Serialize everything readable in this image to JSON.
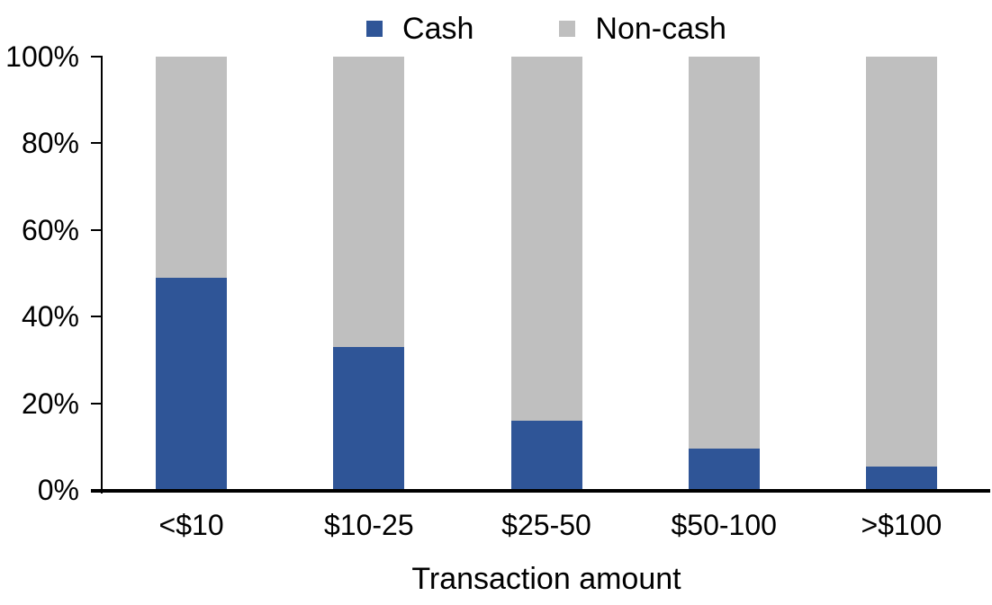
{
  "chart_data": {
    "type": "bar",
    "subtype": "stacked-100",
    "title": "",
    "categories": [
      "<$10",
      "$10-25",
      "$25-50",
      "$50-100",
      ">$100"
    ],
    "series": [
      {
        "name": "Cash",
        "color": "#2F5597",
        "values": [
          49,
          33,
          16,
          9.5,
          5.5
        ]
      },
      {
        "name": "Non-cash",
        "color": "#BFBFBF",
        "values": [
          51,
          67,
          84,
          90.5,
          94.5
        ]
      }
    ],
    "xlabel": "Transaction amount",
    "ylabel": "",
    "ylim": [
      0,
      100
    ],
    "yticks": [
      {
        "value": 0,
        "label": "0%"
      },
      {
        "value": 20,
        "label": "20%"
      },
      {
        "value": 40,
        "label": "40%"
      },
      {
        "value": 60,
        "label": "60%"
      },
      {
        "value": 80,
        "label": "80%"
      },
      {
        "value": 100,
        "label": "100%"
      }
    ],
    "legend_position": "top",
    "grid": false,
    "axis_color": "#000000",
    "text_color": "#000000",
    "background_color": "#FFFFFF"
  }
}
